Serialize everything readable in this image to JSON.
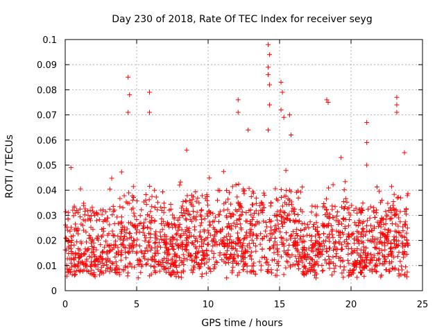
{
  "chart_data": {
    "type": "scatter",
    "title": "Day 230 of 2018, Rate Of TEC Index for receiver seyg",
    "xlabel": "GPS time / hours",
    "ylabel": "ROTI / TECUs",
    "xlim": [
      0,
      25
    ],
    "ylim": [
      0,
      0.1
    ],
    "xticks": [
      "0",
      "5",
      "10",
      "15",
      "20",
      "25"
    ],
    "yticks": [
      "0",
      "0.01",
      "0.02",
      "0.03",
      "0.04",
      "0.05",
      "0.06",
      "0.07",
      "0.08",
      "0.09",
      "0.1"
    ],
    "grid": true,
    "marker": "+",
    "color": "#ff0000",
    "data_extent_hours": [
      0,
      24
    ],
    "series": [
      {
        "name": "ROTI",
        "baseline_range": [
          0.005,
          0.03
        ],
        "notable_points": [
          {
            "x": 0.4,
            "y": 0.049
          },
          {
            "x": 4.4,
            "y": 0.085
          },
          {
            "x": 4.5,
            "y": 0.078
          },
          {
            "x": 4.4,
            "y": 0.071
          },
          {
            "x": 5.9,
            "y": 0.079
          },
          {
            "x": 5.9,
            "y": 0.071
          },
          {
            "x": 8.5,
            "y": 0.056
          },
          {
            "x": 12.1,
            "y": 0.076
          },
          {
            "x": 12.1,
            "y": 0.071
          },
          {
            "x": 12.8,
            "y": 0.064
          },
          {
            "x": 14.2,
            "y": 0.098
          },
          {
            "x": 14.3,
            "y": 0.094
          },
          {
            "x": 14.2,
            "y": 0.089
          },
          {
            "x": 14.2,
            "y": 0.086
          },
          {
            "x": 14.3,
            "y": 0.082
          },
          {
            "x": 14.3,
            "y": 0.074
          },
          {
            "x": 14.2,
            "y": 0.064
          },
          {
            "x": 15.1,
            "y": 0.083
          },
          {
            "x": 15.2,
            "y": 0.079
          },
          {
            "x": 15.1,
            "y": 0.072
          },
          {
            "x": 15.3,
            "y": 0.069
          },
          {
            "x": 15.7,
            "y": 0.07
          },
          {
            "x": 15.8,
            "y": 0.062
          },
          {
            "x": 18.3,
            "y": 0.076
          },
          {
            "x": 18.4,
            "y": 0.075
          },
          {
            "x": 19.3,
            "y": 0.053
          },
          {
            "x": 21.1,
            "y": 0.067
          },
          {
            "x": 21.1,
            "y": 0.059
          },
          {
            "x": 21.1,
            "y": 0.05
          },
          {
            "x": 23.2,
            "y": 0.077
          },
          {
            "x": 23.2,
            "y": 0.074
          },
          {
            "x": 23.2,
            "y": 0.071
          }
        ]
      }
    ]
  }
}
